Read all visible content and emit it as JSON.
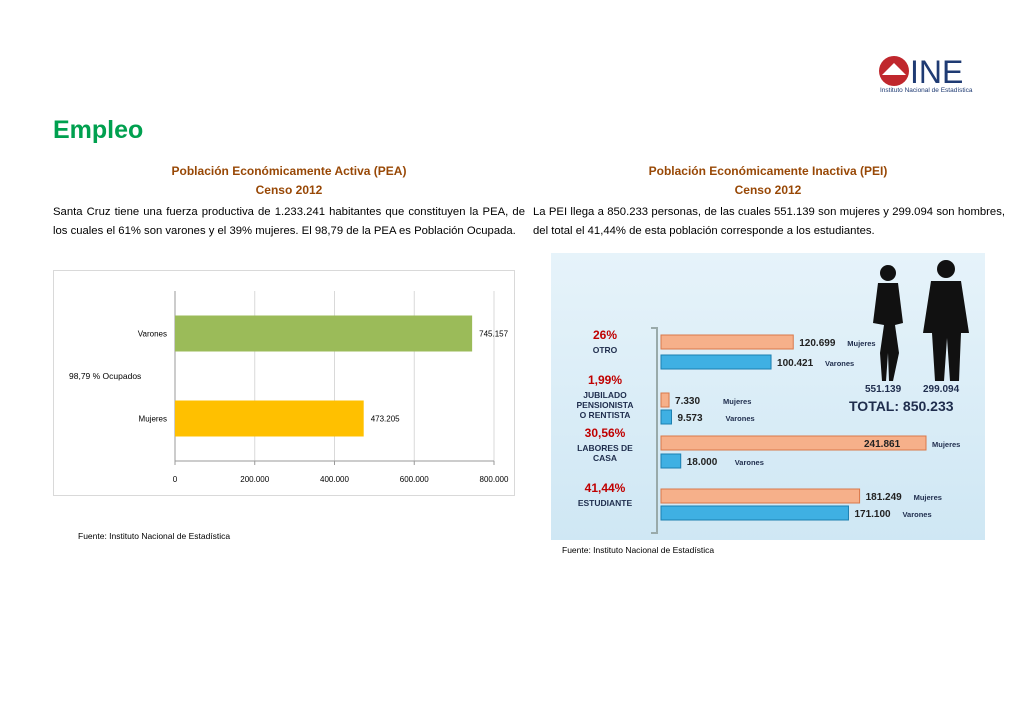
{
  "logo": {
    "acronym": "INE",
    "name": "Instituto Nacional de Estadística"
  },
  "title": "Empleo",
  "pea": {
    "heading": "Población Económicamente Activa (PEA)",
    "subheading": "Censo 2012",
    "paragraph": "Santa Cruz tiene una fuerza productiva de 1.233.241 habitantes que constituyen la PEA, de los cuales el 61% son varones y el 39% mujeres. El 98,79 de la PEA es Población Ocupada.",
    "chart": {
      "type": "bar",
      "annotation": "98,79 % Ocupados",
      "categories": [
        "Varones",
        "Mujeres"
      ],
      "values": [
        745157,
        473205
      ],
      "value_labels": [
        "745.157",
        "473.205"
      ],
      "colors": [
        "#9bbb59",
        "#ffc000"
      ],
      "xlim": [
        0,
        800000
      ],
      "xticks": [
        0,
        {
          "value": 200000,
          "label": "200.000"
        },
        {
          "value": 400000,
          "label": "400.000"
        },
        {
          "value": 600000,
          "label": "600.000"
        },
        {
          "value": 800000,
          "label": "800.000"
        }
      ],
      "grid": true
    },
    "source": "Fuente: Instituto Nacional de Estadística"
  },
  "pei": {
    "heading": "Población Económicamente Inactiva (PEI)",
    "subheading": "Censo 2012",
    "paragraph": "La PEI llega a 850.233 personas, de las cuales 551.139 son mujeres y 299.094 son hombres, del total el 41,44% de esta población corresponde a los estudiantes.",
    "chart": {
      "type": "bar",
      "shares": [
        "26%",
        "1,99%",
        "30,56%",
        "41,44%"
      ],
      "categories": [
        [
          "OTRO"
        ],
        [
          "JUBILADO",
          "PENSIONISTA",
          "O RENTISTA"
        ],
        [
          "LABORES DE",
          "CASA"
        ],
        [
          "ESTUDIANTE"
        ]
      ],
      "series": [
        {
          "name": "Mujeres",
          "color": "#f6b08a",
          "values": [
            120699,
            7330,
            241861,
            181249
          ],
          "value_labels": [
            "120.699",
            "7.330",
            "241.861",
            "181.249"
          ]
        },
        {
          "name": "Varones",
          "color": "#3fb0e3",
          "values": [
            100421,
            9573,
            18000,
            171100
          ],
          "value_labels": [
            "100.421",
            "9.573",
            "18.000",
            "171.100"
          ]
        }
      ],
      "totals": [
        "551.139",
        "299.094"
      ],
      "total_text": "TOTAL:  850.233"
    },
    "source": "Fuente: Instituto Nacional de Estadística"
  }
}
